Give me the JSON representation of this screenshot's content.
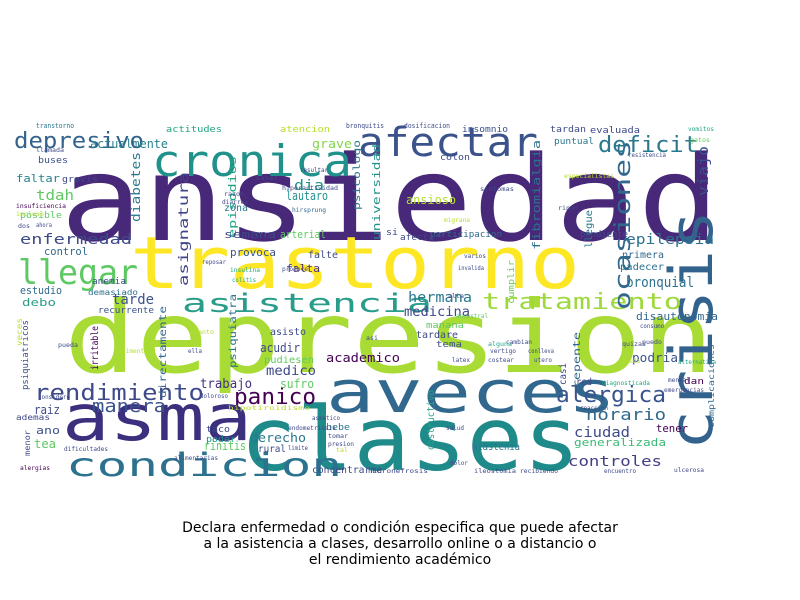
{
  "caption": {
    "line1": "Declara enfermedad o condición especifica que puede afectar",
    "line2": "a la asistencia a clases, desarrollo online o a distancio o",
    "line3": "el rendimiento académico"
  },
  "palette": [
    "#440154",
    "#482878",
    "#3e4a89",
    "#31688e",
    "#26828e",
    "#1f9e89",
    "#35b779",
    "#6ece58",
    "#b5de2b",
    "#fde725"
  ],
  "words": [
    {
      "text": "ansiedad",
      "color": "#482878"
    },
    {
      "text": "depresion",
      "color": "#a8db34"
    },
    {
      "text": "clases",
      "color": "#1f8a8a"
    },
    {
      "text": "trastorno",
      "color": "#fde725"
    },
    {
      "text": "asma",
      "color": "#3b2f7e"
    },
    {
      "text": "aveces",
      "color": "#31688e"
    },
    {
      "text": "crisis",
      "color": "#33638d"
    },
    {
      "text": "cronica",
      "color": "#21918c"
    },
    {
      "text": "afectar",
      "color": "#3b528b"
    },
    {
      "text": "condicion",
      "color": "#2c728e"
    },
    {
      "text": "asistencia",
      "color": "#2a9d8a"
    },
    {
      "text": "tratamiento",
      "color": "#9dd93b"
    },
    {
      "text": "rendimiento",
      "color": "#3e4a89"
    },
    {
      "text": "llegar",
      "color": "#5ec962"
    },
    {
      "text": "depresivo",
      "color": "#33638d"
    },
    {
      "text": "alergica",
      "color": "#39558c"
    },
    {
      "text": "ocasiones",
      "color": "#31688e"
    },
    {
      "text": "panico",
      "color": "#440154"
    },
    {
      "text": "deficit",
      "color": "#2a788e"
    },
    {
      "text": "manera",
      "color": "#3b528b"
    },
    {
      "text": "epilepsia",
      "color": "#2c728e"
    },
    {
      "text": "enfermedad",
      "color": "#3e4a89"
    },
    {
      "text": "horario",
      "color": "#31688e"
    },
    {
      "text": "controles",
      "color": "#433e85"
    },
    {
      "text": "hermana",
      "color": "#2a788e"
    },
    {
      "text": "tarde",
      "color": "#3b528b"
    },
    {
      "text": "dia",
      "color": "#21918c"
    },
    {
      "text": "ciudad",
      "color": "#3e4a89"
    },
    {
      "text": "generalizada",
      "color": "#3bbb75"
    },
    {
      "text": "bronquial",
      "color": "#2c728e"
    },
    {
      "text": "medicina",
      "color": "#3e4a89"
    },
    {
      "text": "trabajo",
      "color": "#46327e"
    },
    {
      "text": "medico",
      "color": "#3e4a89"
    },
    {
      "text": "tdah",
      "color": "#5ec962"
    },
    {
      "text": "viajo",
      "color": "#3b528b"
    },
    {
      "text": "fibromialgia",
      "color": "#2c728e"
    },
    {
      "text": "universidad",
      "color": "#21918c"
    },
    {
      "text": "asignatura",
      "color": "#404688"
    },
    {
      "text": "episodios",
      "color": "#21a585"
    },
    {
      "text": "diabetes",
      "color": "#2a788e"
    },
    {
      "text": "actualmente",
      "color": "#26828e"
    },
    {
      "text": "grave",
      "color": "#84d44b"
    },
    {
      "text": "semana",
      "color": "#3e4a89"
    },
    {
      "text": "arterial",
      "color": "#5ec962"
    },
    {
      "text": "acudir",
      "color": "#3e4a89"
    },
    {
      "text": "sufro",
      "color": "#5ec962"
    },
    {
      "text": "derecho",
      "color": "#2a788e"
    },
    {
      "text": "academico",
      "color": "#440154"
    },
    {
      "text": "podria",
      "color": "#3b528b"
    },
    {
      "text": "tener",
      "color": "#440154"
    },
    {
      "text": "disautonomia",
      "color": "#31688e"
    },
    {
      "text": "ansioso",
      "color": "#b5de2b"
    },
    {
      "text": "control",
      "color": "#31688e"
    },
    {
      "text": "estudio",
      "color": "#31688e"
    },
    {
      "text": "tea",
      "color": "#5ec962"
    },
    {
      "text": "raiz",
      "color": "#3e4a89"
    },
    {
      "text": "ano",
      "color": "#3b528b"
    },
    {
      "text": "debo",
      "color": "#2a9d8a"
    },
    {
      "text": "falta",
      "color": "#46327e"
    },
    {
      "text": "faltar",
      "color": "#26828e"
    },
    {
      "text": "pendiente",
      "color": "#3e4a89"
    },
    {
      "text": "primera",
      "color": "#31688e"
    },
    {
      "text": "padecer",
      "color": "#2c728e"
    },
    {
      "text": "lautaro",
      "color": "#21918c"
    },
    {
      "text": "zona",
      "color": "#2a788e"
    },
    {
      "text": "provoca",
      "color": "#39558c"
    },
    {
      "text": "falte",
      "color": "#3e4a89"
    },
    {
      "text": "tema",
      "color": "#3b528b"
    },
    {
      "text": "tardare",
      "color": "#3e4a89"
    },
    {
      "text": "asisto",
      "color": "#3e4a89"
    },
    {
      "text": "manana",
      "color": "#5ec962"
    },
    {
      "text": "repente",
      "color": "#31688e"
    },
    {
      "text": "obstructivo",
      "color": "#21a585"
    },
    {
      "text": "miastenia",
      "color": "#2a788e"
    },
    {
      "text": "rinitis",
      "color": "#5ec962"
    },
    {
      "text": "psiquiatra",
      "color": "#2c728e"
    },
    {
      "text": "directamente",
      "color": "#31688e"
    },
    {
      "text": "irritable",
      "color": "#440154"
    },
    {
      "text": "pudiesen",
      "color": "#5ec962"
    },
    {
      "text": "recurrente",
      "color": "#3b528b"
    },
    {
      "text": "concentrarme",
      "color": "#3e4a89"
    },
    {
      "text": "insomnio",
      "color": "#3b528b"
    },
    {
      "text": "psicologo",
      "color": "#2a788e"
    },
    {
      "text": "atencion",
      "color": "#b5de2b"
    },
    {
      "text": "actitudes",
      "color": "#21a585"
    },
    {
      "text": "tardan",
      "color": "#3e4a89"
    },
    {
      "text": "evaluada",
      "color": "#3e4a89"
    },
    {
      "text": "puntual",
      "color": "#2a788e"
    },
    {
      "text": "gravis",
      "color": "#3e4a89"
    },
    {
      "text": "posible",
      "color": "#5ec962"
    },
    {
      "text": "bebe",
      "color": "#2a788e"
    },
    {
      "text": "rural",
      "color": "#3e4a89"
    },
    {
      "text": "taco",
      "color": "#3e4a89"
    },
    {
      "text": "poder",
      "color": "#21918c"
    },
    {
      "text": "colon",
      "color": "#3e4a89"
    },
    {
      "text": "participacion",
      "color": "#31688e"
    },
    {
      "text": "afecta",
      "color": "#3e4a89"
    },
    {
      "text": "si",
      "color": "#3e4a89"
    },
    {
      "text": "buses",
      "color": "#3b528b"
    },
    {
      "text": "menor",
      "color": "#3e4a89"
    },
    {
      "text": "ademas",
      "color": "#3e4a89"
    },
    {
      "text": "psiquiatricos",
      "color": "#3b528b"
    },
    {
      "text": "veces",
      "color": "#b5de2b"
    },
    {
      "text": "anemia",
      "color": "#3e4a89"
    },
    {
      "text": "demasiado",
      "color": "#2c728e"
    },
    {
      "text": "casi",
      "color": "#3e4a89"
    },
    {
      "text": "red",
      "color": "#3e4a89"
    },
    {
      "text": "dan",
      "color": "#440154"
    },
    {
      "text": "cumplir",
      "color": "#6ece58"
    },
    {
      "text": "llegue",
      "color": "#2a788e"
    },
    {
      "text": "complicaciones",
      "color": "#31688e"
    },
    {
      "text": "transtorno",
      "color": "#2c728e"
    },
    {
      "text": "bronquitis",
      "color": "#3e4a89"
    },
    {
      "text": "dosificacion",
      "color": "#3e4a89"
    },
    {
      "text": "vomitos",
      "color": "#21a585"
    },
    {
      "text": "gatos",
      "color": "#5ec962"
    },
    {
      "text": "resistencia",
      "color": "#3e4a89"
    },
    {
      "text": "llamada",
      "color": "#3e4a89"
    },
    {
      "text": "insuficiencia",
      "color": "#440154"
    },
    {
      "text": "incluso",
      "color": "#b5de2b"
    },
    {
      "text": "dos",
      "color": "#3e4a89"
    },
    {
      "text": "ahora",
      "color": "#3e4a89"
    },
    {
      "text": "saber",
      "color": "#3e4a89"
    },
    {
      "text": "resultar",
      "color": "#3e4a89"
    },
    {
      "text": "hiperactividad",
      "color": "#3e4a89"
    },
    {
      "text": "hirsprung",
      "color": "#31688e"
    },
    {
      "text": "razon",
      "color": "#3e4a89"
    },
    {
      "text": "diarrea",
      "color": "#3e4a89"
    },
    {
      "text": "reposar",
      "color": "#3e4a89"
    },
    {
      "text": "insulina",
      "color": "#21a585"
    },
    {
      "text": "colitis",
      "color": "#21a585"
    },
    {
      "text": "produce",
      "color": "#3e4a89"
    },
    {
      "text": "sintomas",
      "color": "#3e4a89"
    },
    {
      "text": "migrana",
      "color": "#b5de2b"
    },
    {
      "text": "rinon",
      "color": "#3e4a89"
    },
    {
      "text": "invalida",
      "color": "#3e4a89"
    },
    {
      "text": "varios",
      "color": "#3e4a89"
    },
    {
      "text": "alta",
      "color": "#3e4a89"
    },
    {
      "text": "ancestral",
      "color": "#5ec962"
    },
    {
      "text": "especialistas",
      "color": "#b5de2b"
    },
    {
      "text": "puedo",
      "color": "#3e4a89"
    },
    {
      "text": "consumo",
      "color": "#3e4a89"
    },
    {
      "text": "quizas",
      "color": "#3e4a89"
    },
    {
      "text": "cambian",
      "color": "#3e4a89"
    },
    {
      "text": "alguna",
      "color": "#21a585"
    },
    {
      "text": "vertigo",
      "color": "#3e4a89"
    },
    {
      "text": "conlleva",
      "color": "#3e4a89"
    },
    {
      "text": "utero",
      "color": "#3e4a89"
    },
    {
      "text": "costear",
      "color": "#3e4a89"
    },
    {
      "text": "latex",
      "color": "#3e4a89"
    },
    {
      "text": "ayuda",
      "color": "#b5de2b"
    },
    {
      "text": "mental",
      "color": "#3e4a89"
    },
    {
      "text": "emergencias",
      "color": "#3e4a89"
    },
    {
      "text": "alternativa",
      "color": "#21a585"
    },
    {
      "text": "diagnosticada",
      "color": "#21a585"
    },
    {
      "text": "reaccion",
      "color": "#3e4a89"
    },
    {
      "text": "salud",
      "color": "#3e4a89"
    },
    {
      "text": "tomar",
      "color": "#3e4a89"
    },
    {
      "text": "presion",
      "color": "#3e4a89"
    },
    {
      "text": "asmatico",
      "color": "#3e4a89"
    },
    {
      "text": "endometriosis",
      "color": "#3e4a89"
    },
    {
      "text": "limite",
      "color": "#3e4a89"
    },
    {
      "text": "tal",
      "color": "#b5de2b"
    },
    {
      "text": "dolor",
      "color": "#3e4a89"
    },
    {
      "text": "alimentarias",
      "color": "#3e4a89"
    },
    {
      "text": "doloroso",
      "color": "#3e4a89"
    },
    {
      "text": "considero",
      "color": "#3e4a89"
    },
    {
      "text": "dificultades",
      "color": "#3e4a89"
    },
    {
      "text": "alergias",
      "color": "#440154"
    },
    {
      "text": "hidronefrosis",
      "color": "#3e4a89"
    },
    {
      "text": "ileostomia",
      "color": "#3e4a89"
    },
    {
      "text": "recibiendo",
      "color": "#3e4a89"
    },
    {
      "text": "encuentro",
      "color": "#3e4a89"
    },
    {
      "text": "ulcerosa",
      "color": "#3e4a89"
    },
    {
      "text": "asi",
      "color": "#3e4a89"
    },
    {
      "text": "cuanto",
      "color": "#b5de2b"
    },
    {
      "text": "ella",
      "color": "#3e4a89"
    },
    {
      "text": "pueda",
      "color": "#3e4a89"
    },
    {
      "text": "alimento",
      "color": "#b5de2b"
    },
    {
      "text": "hipotiroidismo",
      "color": "#b5de2b"
    }
  ]
}
